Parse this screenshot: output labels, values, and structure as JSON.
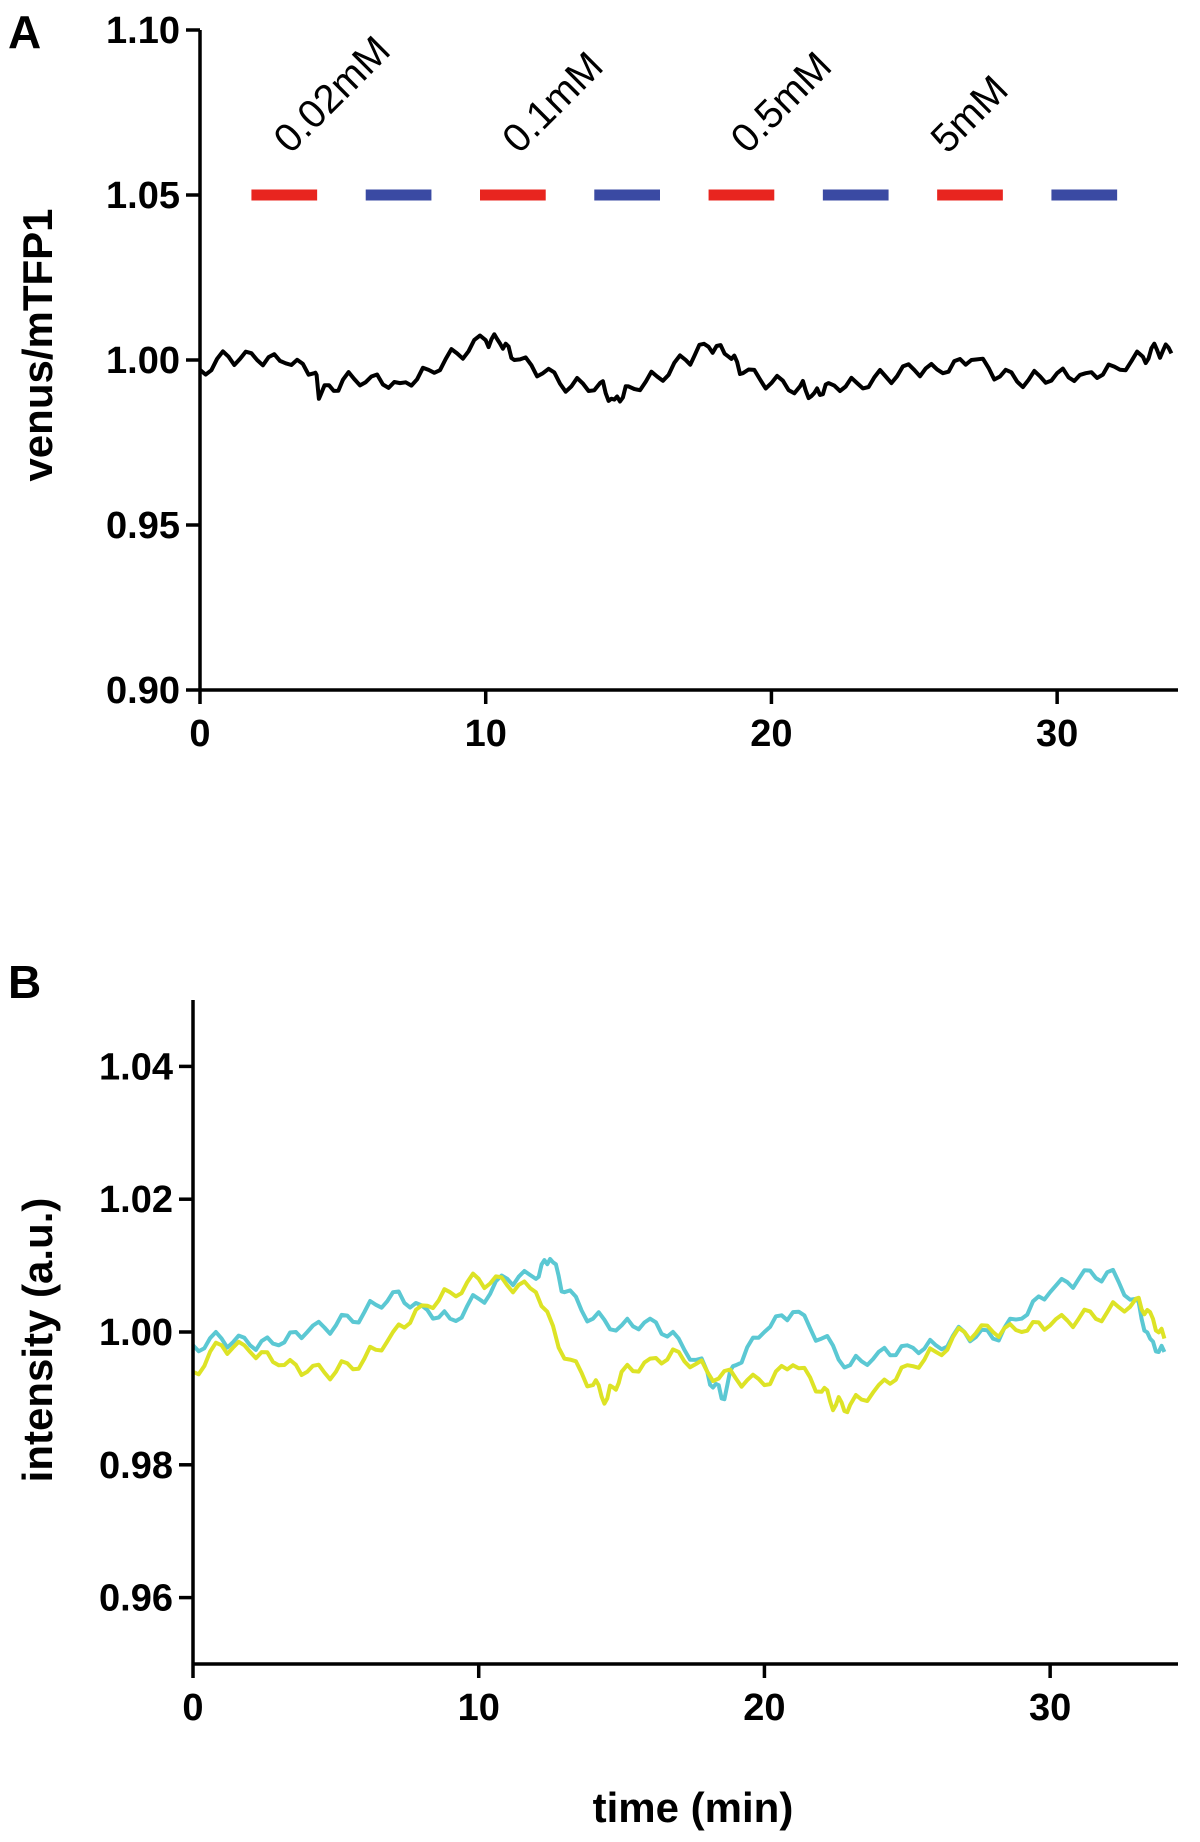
{
  "chart_data": [
    {
      "panel": "A",
      "type": "line",
      "ylabel": "venus/mTFP1",
      "xlabel": "",
      "xlim": [
        0,
        35
      ],
      "ylim": [
        0.9,
        1.1
      ],
      "xticks": [
        0,
        10,
        20,
        30
      ],
      "xtick_labels": [
        "0",
        "10",
        "20",
        "30"
      ],
      "yticks": [
        0.9,
        0.95,
        1.0,
        1.05,
        1.1
      ],
      "ytick_labels": [
        "0.90",
        "0.95",
        "1.00",
        "1.05",
        "1.10"
      ],
      "grid": false,
      "series": [
        {
          "color": "#000000",
          "x": [
            0,
            1,
            2,
            3,
            4,
            4.2,
            5,
            6,
            7,
            8,
            9,
            10,
            10.5,
            11,
            12,
            13,
            14,
            14.5,
            15,
            16,
            17,
            17.8,
            18.5,
            19,
            20,
            21,
            21.5,
            22,
            23,
            24,
            25,
            26,
            27,
            28,
            29,
            30,
            31,
            32,
            33,
            33.5,
            34
          ],
          "y": [
            0.997,
            1.001,
            1.0,
            0.999,
            0.996,
            0.989,
            0.994,
            0.995,
            0.993,
            0.997,
            1.002,
            1.006,
            1.005,
            1.0,
            0.996,
            0.992,
            0.993,
            0.988,
            0.992,
            0.995,
            1.0,
            1.004,
            1.001,
            0.996,
            0.993,
            0.992,
            0.99,
            0.993,
            0.993,
            0.995,
            0.997,
            0.996,
            1.0,
            0.995,
            0.994,
            0.996,
            0.996,
            0.998,
            1.001,
            1.003,
            1.002
          ]
        }
      ],
      "annotations": [
        {
          "label": "0.02mM",
          "x": 4
        },
        {
          "label": "0.1mM",
          "x": 12
        },
        {
          "label": "0.5mM",
          "x": 20
        },
        {
          "label": "5mM",
          "x": 27
        }
      ],
      "bars": [
        {
          "x0": 1.8,
          "x1": 4.1,
          "y": 1.05,
          "color": "#e8251f"
        },
        {
          "x0": 5.8,
          "x1": 8.1,
          "y": 1.05,
          "color": "#3a4aa3"
        },
        {
          "x0": 9.8,
          "x1": 12.1,
          "y": 1.05,
          "color": "#e8251f"
        },
        {
          "x0": 13.8,
          "x1": 16.1,
          "y": 1.05,
          "color": "#3a4aa3"
        },
        {
          "x0": 17.8,
          "x1": 20.1,
          "y": 1.05,
          "color": "#e8251f"
        },
        {
          "x0": 21.8,
          "x1": 24.1,
          "y": 1.05,
          "color": "#3a4aa3"
        },
        {
          "x0": 25.8,
          "x1": 28.1,
          "y": 1.05,
          "color": "#e8251f"
        },
        {
          "x0": 29.8,
          "x1": 32.1,
          "y": 1.05,
          "color": "#3a4aa3"
        }
      ]
    },
    {
      "panel": "B",
      "type": "line",
      "ylabel": "intensity (a.u.)",
      "xlabel": "time (min)",
      "xlim": [
        0,
        35
      ],
      "ylim": [
        0.95,
        1.05
      ],
      "xticks": [
        0,
        10,
        20,
        30
      ],
      "xtick_labels": [
        "0",
        "10",
        "20",
        "30"
      ],
      "yticks": [
        0.96,
        0.98,
        1.0,
        1.02,
        1.04
      ],
      "ytick_labels": [
        "0.96",
        "0.98",
        "1.00",
        "1.02",
        "1.04"
      ],
      "grid": false,
      "series": [
        {
          "color": "#5bc8d3",
          "x": [
            0,
            1,
            2,
            3,
            4,
            5,
            6,
            7,
            8,
            9,
            10,
            11,
            12,
            12.5,
            13,
            14,
            15,
            16,
            17,
            18,
            18.5,
            19,
            20,
            21,
            22,
            23,
            24,
            25,
            26,
            27,
            28,
            29,
            30,
            31,
            32,
            33,
            33.5,
            34
          ],
          "y": [
            0.998,
            0.999,
            0.998,
            0.998,
            1.0,
            1.001,
            1.003,
            1.006,
            1.004,
            1.002,
            1.005,
            1.008,
            1.008,
            1.011,
            1.006,
            1.002,
            1.001,
            1.002,
            0.999,
            0.994,
            0.99,
            0.995,
            1.0,
            1.003,
            0.999,
            0.995,
            0.997,
            0.998,
            0.998,
            1.0,
            0.999,
            1.002,
            1.006,
            1.008,
            1.009,
            1.005,
            0.999,
            0.997
          ]
        },
        {
          "color": "#dde326",
          "x": [
            0,
            1,
            2,
            3,
            4,
            5,
            6,
            7,
            8,
            9,
            10,
            11,
            12,
            13,
            14,
            14.5,
            15,
            16,
            17,
            18,
            19,
            20,
            21,
            22,
            22.5,
            23,
            24,
            25,
            26,
            27,
            28,
            29,
            30,
            31,
            32,
            33,
            33.5,
            34
          ],
          "y": [
            0.994,
            0.998,
            0.997,
            0.995,
            0.994,
            0.994,
            0.996,
            1.0,
            1.004,
            1.006,
            1.008,
            1.007,
            1.006,
            0.996,
            0.992,
            0.99,
            0.994,
            0.996,
            0.997,
            0.994,
            0.993,
            0.992,
            0.995,
            0.991,
            0.989,
            0.989,
            0.992,
            0.995,
            0.997,
            1.0,
            1.0,
            1.0,
            1.001,
            1.002,
            1.003,
            1.005,
            1.003,
            0.999
          ]
        }
      ]
    }
  ]
}
